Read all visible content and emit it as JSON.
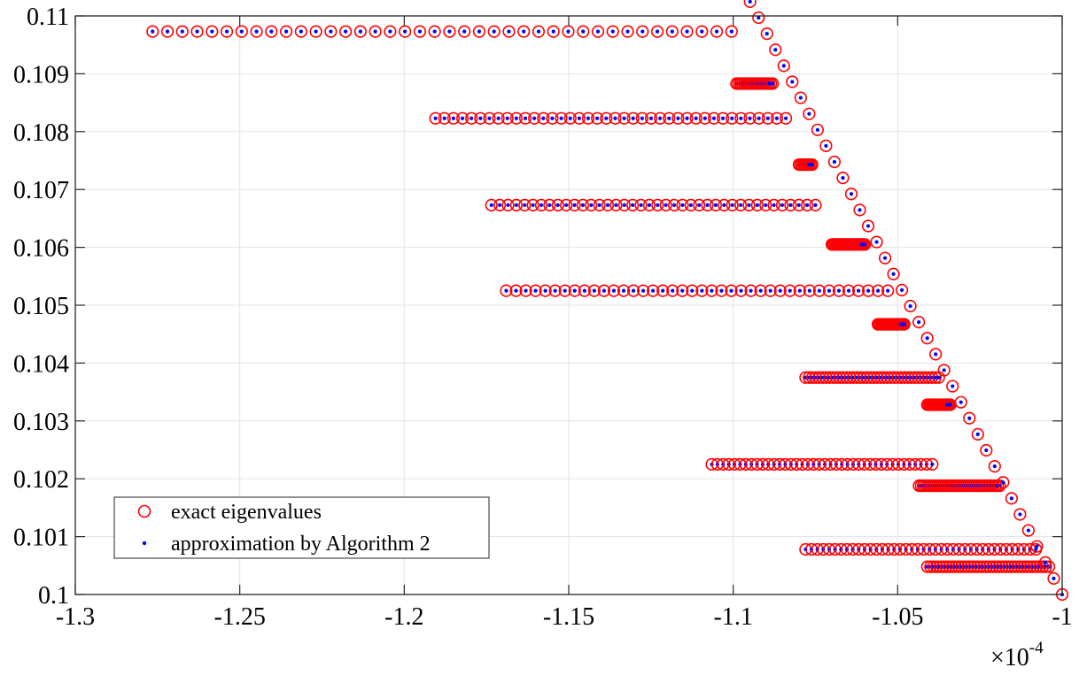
{
  "chart_data": {
    "type": "scatter",
    "title": "",
    "xlabel": "",
    "ylabel": "",
    "xlim": [
      -1.3,
      -1.0
    ],
    "ylim": [
      0.1,
      0.11
    ],
    "x_multiplier": "×10^-4",
    "x_ticks": [
      "-1.3",
      "-1.25",
      "-1.2",
      "-1.15",
      "-1.1",
      "-1.05",
      "-1"
    ],
    "y_ticks": [
      "0.1",
      "0.101",
      "0.102",
      "0.103",
      "0.104",
      "0.105",
      "0.106",
      "0.107",
      "0.108",
      "0.109",
      "0.11"
    ],
    "grid": true,
    "legend_position": "bottom-left",
    "marker_colors": {
      "exact": "#ff0000",
      "approx": "#0000ff"
    },
    "series": [
      {
        "name": "exact eigenvalues",
        "marker": "open-circle"
      },
      {
        "name": "approximation by Algorithm 2",
        "marker": "dot"
      }
    ],
    "diagonal": {
      "x_start": -1.1,
      "y_start": 0.1108,
      "x_end": -1.0,
      "y_end": 0.1,
      "count": 40
    },
    "rows": [
      {
        "y": 0.10973,
        "x_from": -1.2765,
        "x_to": -1.1005,
        "count": 40
      },
      {
        "y": 0.10883,
        "x_from": -1.099,
        "x_to": -1.088,
        "count": 20
      },
      {
        "y": 0.10823,
        "x_from": -1.1905,
        "x_to": -1.084,
        "count": 40
      },
      {
        "y": 0.10743,
        "x_from": -1.08,
        "x_to": -1.076,
        "count": 9
      },
      {
        "y": 0.10673,
        "x_from": -1.1735,
        "x_to": -1.075,
        "count": 40
      },
      {
        "y": 0.10605,
        "x_from": -1.07,
        "x_to": -1.06,
        "count": 25
      },
      {
        "y": 0.10525,
        "x_from": -1.169,
        "x_to": -1.053,
        "count": 40
      },
      {
        "y": 0.10467,
        "x_from": -1.056,
        "x_to": -1.048,
        "count": 20
      },
      {
        "y": 0.10375,
        "x_from": -1.078,
        "x_to": -1.0375,
        "count": 40
      },
      {
        "y": 0.10328,
        "x_from": -1.041,
        "x_to": -1.034,
        "count": 18
      },
      {
        "y": 0.10225,
        "x_from": -1.1065,
        "x_to": -1.0395,
        "count": 40
      },
      {
        "y": 0.10188,
        "x_from": -1.0435,
        "x_to": -1.019,
        "count": 40
      },
      {
        "y": 0.10078,
        "x_from": -1.078,
        "x_to": -1.008,
        "count": 40
      },
      {
        "y": 0.10048,
        "x_from": -1.041,
        "x_to": -1.004,
        "count": 40
      }
    ]
  }
}
